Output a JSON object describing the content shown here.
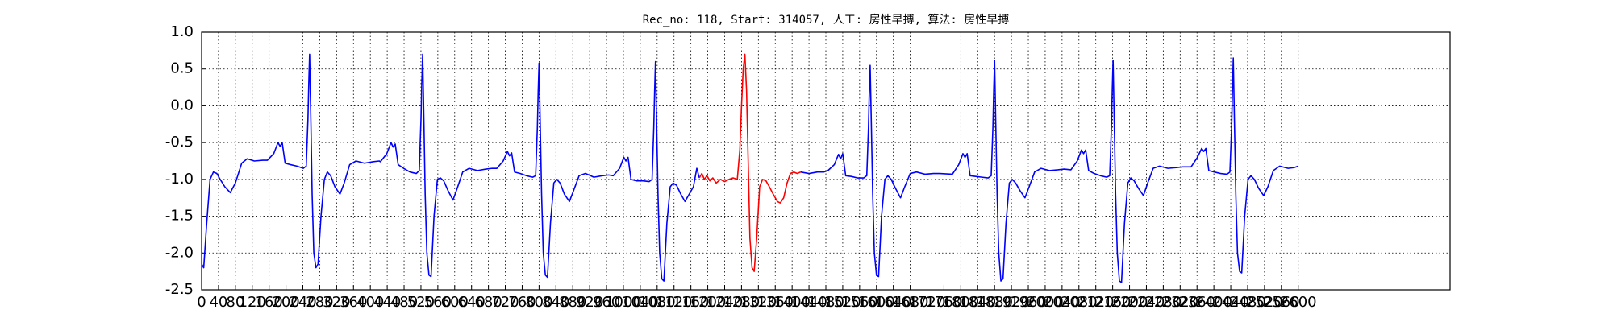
{
  "chart_data": {
    "type": "line",
    "title": "Rec_no: 118, Start: 314057, 人工: 房性早搏, 算法: 房性早搏",
    "xlim": [
      0,
      2960
    ],
    "ylim": [
      -2.5,
      1.0
    ],
    "xticks": [
      0,
      40,
      80,
      120,
      160,
      200,
      240,
      280,
      320,
      360,
      400,
      440,
      480,
      520,
      560,
      600,
      640,
      680,
      720,
      760,
      800,
      840,
      880,
      920,
      960,
      1000,
      1040,
      1080,
      1120,
      1160,
      1200,
      1240,
      1280,
      1320,
      1360,
      1400,
      1440,
      1480,
      1520,
      1560,
      1600,
      1640,
      1680,
      1720,
      1760,
      1800,
      1840,
      1880,
      1920,
      1960,
      2000,
      2040,
      2080,
      2120,
      2160,
      2200,
      2240,
      2280,
      2320,
      2360,
      2400,
      2440,
      2480,
      2520,
      2560,
      2600
    ],
    "yticks": [
      -2.5,
      {
        "value": -2.0,
        "label": "-2.0"
      },
      -1.5,
      {
        "value": -1.0,
        "label": "-1.0"
      },
      -0.5,
      {
        "value": 0.0,
        "label": "0.0"
      },
      0.5,
      {
        "value": 1.0,
        "label": "1.0"
      }
    ],
    "grid": true,
    "series": [
      {
        "color": "#0000ff",
        "x": [
          0,
          5,
          12,
          20,
          28,
          36,
          44,
          55,
          68,
          80,
          95,
          108,
          125,
          145,
          156,
          171,
          181,
          186,
          191,
          198,
          211,
          226,
          241,
          248,
          252,
          254,
          256,
          259,
          262,
          266,
          271,
          276,
          283,
          291,
          298,
          306,
          316,
          328,
          338,
          351,
          366,
          386,
          406,
          421,
          424,
          439,
          449,
          454,
          459,
          466,
          479,
          494,
          509,
          516,
          520,
          522,
          524,
          527,
          530,
          534,
          539,
          544,
          551,
          559,
          566,
          574,
          584,
          596,
          606,
          619,
          634,
          654,
          674,
          689,
          700,
          715,
          725,
          730,
          735,
          742,
          755,
          770,
          785,
          792,
          796,
          798,
          800,
          803,
          806,
          810,
          815,
          820,
          827,
          835,
          842,
          850,
          860,
          872,
          882,
          895,
          910,
          930,
          950,
          965,
          976,
          991,
          1001,
          1006,
          1011,
          1018,
          1031,
          1046,
          1061,
          1068,
          1072,
          1074,
          1076,
          1079,
          1082,
          1086,
          1091,
          1096,
          1103,
          1111,
          1118,
          1126,
          1136,
          1146,
          1156,
          1166,
          1174,
          1180,
          1300,
          1420,
          1440,
          1460,
          1475,
          1485,
          1500,
          1510,
          1515,
          1520,
          1527,
          1540,
          1555,
          1570,
          1577,
          1581,
          1583,
          1585,
          1588,
          1591,
          1595,
          1600,
          1605,
          1612,
          1620,
          1627,
          1635,
          1645,
          1657,
          1667,
          1680,
          1695,
          1715,
          1735,
          1750,
          1780,
          1795,
          1805,
          1810,
          1815,
          1822,
          1835,
          1850,
          1865,
          1872,
          1876,
          1878,
          1880,
          1883,
          1886,
          1890,
          1895,
          1900,
          1907,
          1915,
          1922,
          1930,
          1940,
          1952,
          1962,
          1975,
          1990,
          2010,
          2030,
          2045,
          2061,
          2076,
          2086,
          2091,
          2096,
          2103,
          2116,
          2131,
          2146,
          2153,
          2157,
          2159,
          2161,
          2164,
          2167,
          2171,
          2176,
          2181,
          2188,
          2196,
          2203,
          2211,
          2221,
          2233,
          2243,
          2256,
          2271,
          2291,
          2311,
          2326,
          2346,
          2361,
          2371,
          2376,
          2381,
          2388,
          2401,
          2416,
          2431,
          2438,
          2442,
          2444,
          2446,
          2449,
          2452,
          2456,
          2461,
          2466,
          2473,
          2481,
          2488,
          2496,
          2506,
          2518,
          2528,
          2541,
          2556,
          2576,
          2590,
          2600
        ],
        "values": [
          -2.15,
          -2.2,
          -1.6,
          -1.0,
          -0.9,
          -0.92,
          -1.0,
          -1.1,
          -1.18,
          -1.05,
          -0.78,
          -0.72,
          -0.75,
          -0.74,
          -0.74,
          -0.65,
          -0.5,
          -0.55,
          -0.5,
          -0.78,
          -0.8,
          -0.82,
          -0.85,
          -0.82,
          -0.2,
          0.3,
          0.7,
          -0.2,
          -1.2,
          -2.0,
          -2.2,
          -2.15,
          -1.5,
          -1.0,
          -0.9,
          -0.95,
          -1.1,
          -1.2,
          -1.05,
          -0.8,
          -0.75,
          -0.78,
          -0.76,
          -0.75,
          -0.76,
          -0.65,
          -0.5,
          -0.56,
          -0.52,
          -0.8,
          -0.85,
          -0.9,
          -0.92,
          -0.88,
          -0.2,
          0.3,
          0.7,
          -0.2,
          -1.2,
          -2.0,
          -2.3,
          -2.32,
          -1.5,
          -1.0,
          -0.98,
          -1.02,
          -1.15,
          -1.28,
          -1.12,
          -0.9,
          -0.85,
          -0.88,
          -0.86,
          -0.85,
          -0.85,
          -0.75,
          -0.62,
          -0.68,
          -0.64,
          -0.9,
          -0.92,
          -0.95,
          -0.97,
          -0.95,
          -0.3,
          0.2,
          0.58,
          -0.3,
          -1.2,
          -2.0,
          -2.3,
          -2.33,
          -1.6,
          -1.05,
          -1.0,
          -1.05,
          -1.2,
          -1.3,
          -1.15,
          -0.95,
          -0.92,
          -0.97,
          -0.95,
          -0.94,
          -0.95,
          -0.85,
          -0.7,
          -0.75,
          -0.7,
          -1.0,
          -1.02,
          -1.02,
          -1.03,
          -1.0,
          -0.3,
          0.2,
          0.6,
          -0.3,
          -1.2,
          -2.0,
          -2.35,
          -2.38,
          -1.6,
          -1.1,
          -1.05,
          -1.08,
          -1.2,
          -1.3,
          -1.2,
          -1.1,
          -0.85,
          -0.98,
          null,
          -0.9,
          -0.92,
          -0.9,
          -0.9,
          -0.88,
          -0.8,
          -0.66,
          -0.72,
          -0.65,
          -0.95,
          -0.96,
          -0.98,
          -0.98,
          -0.95,
          -0.3,
          0.2,
          0.55,
          -0.3,
          -1.2,
          -2.0,
          -2.3,
          -2.32,
          -1.5,
          -1.0,
          -0.95,
          -1.0,
          -1.12,
          -1.25,
          -1.1,
          -0.92,
          -0.9,
          -0.93,
          -0.92,
          -0.92,
          -0.93,
          -0.8,
          -0.65,
          -0.7,
          -0.65,
          -0.95,
          -0.96,
          -0.97,
          -0.98,
          -0.95,
          -0.3,
          0.2,
          0.62,
          -0.3,
          -1.2,
          -2.0,
          -2.38,
          -2.35,
          -1.6,
          -1.05,
          -1.0,
          -1.05,
          -1.15,
          -1.25,
          -1.1,
          -0.9,
          -0.85,
          -0.88,
          -0.87,
          -0.86,
          -0.87,
          -0.75,
          -0.6,
          -0.65,
          -0.6,
          -0.88,
          -0.92,
          -0.95,
          -0.97,
          -0.95,
          -0.3,
          0.2,
          0.62,
          -0.3,
          -1.2,
          -2.0,
          -2.38,
          -2.4,
          -1.6,
          -1.05,
          -0.98,
          -1.02,
          -1.12,
          -1.22,
          -1.05,
          -0.85,
          -0.82,
          -0.85,
          -0.84,
          -0.83,
          -0.83,
          -0.7,
          -0.58,
          -0.62,
          -0.58,
          -0.88,
          -0.9,
          -0.92,
          -0.93,
          -0.9,
          -0.3,
          0.2,
          0.65,
          -0.3,
          -1.2,
          -2.0,
          -2.25,
          -2.27,
          -1.5,
          -1.0,
          -0.95,
          -1.0,
          -1.12,
          -1.22,
          -1.1,
          -0.88,
          -0.82,
          -0.85,
          -0.84,
          -0.82
        ]
      },
      {
        "color": "#ff0000",
        "x": [
          1180,
          1186,
          1192,
          1198,
          1205,
          1212,
          1220,
          1230,
          1240,
          1250,
          1260,
          1270,
          1276,
          1280,
          1284,
          1288,
          1292,
          1296,
          1300,
          1305,
          1310,
          1316,
          1323,
          1330,
          1338,
          1346,
          1355,
          1365,
          1372,
          1380,
          1388,
          1396,
          1404,
          1412,
          1420
        ],
        "values": [
          -0.98,
          -0.92,
          -1.0,
          -0.95,
          -1.02,
          -0.98,
          -1.05,
          -1.0,
          -1.03,
          -1.0,
          -0.98,
          -1.0,
          -0.6,
          0.0,
          0.5,
          0.7,
          0.2,
          -0.8,
          -1.8,
          -2.2,
          -2.25,
          -1.8,
          -1.1,
          -1.0,
          -1.02,
          -1.1,
          -1.2,
          -1.3,
          -1.32,
          -1.25,
          -1.05,
          -0.92,
          -0.9,
          -0.92,
          -0.9
        ]
      }
    ]
  }
}
